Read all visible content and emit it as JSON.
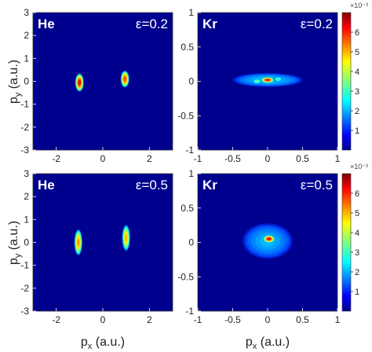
{
  "chart_data": [
    {
      "type": "heatmap",
      "atom_label": "He",
      "epsilon_label": "ε=0.2",
      "xlim": [
        -3,
        3
      ],
      "ylim": [
        -3,
        3
      ],
      "xticks": [
        "-2",
        "0",
        "2"
      ],
      "yticks": [
        "3",
        "2",
        "1",
        "0",
        "-1",
        "-2",
        "-3"
      ],
      "ylabel_main": "p",
      "ylabel_sub": "y",
      "ylabel_unit": " (a.u.)",
      "hotspots": [
        {
          "x": -1.0,
          "y": -0.05,
          "sx": 0.13,
          "sy": 0.28,
          "peak": 1.0
        },
        {
          "x": 0.95,
          "y": 0.1,
          "sx": 0.13,
          "sy": 0.26,
          "peak": 0.9
        }
      ]
    },
    {
      "type": "heatmap",
      "atom_label": "Kr",
      "epsilon_label": "ε=0.2",
      "xlim": [
        -1,
        1
      ],
      "ylim": [
        -1,
        1
      ],
      "xticks": [
        "-1",
        "-0.5",
        "0",
        "0.5",
        "1"
      ],
      "yticks": [
        "1",
        "0.5",
        "0",
        "-0.5",
        "-1"
      ],
      "hotspots": [
        {
          "x": 0.0,
          "y": 0.02,
          "sx": 0.35,
          "sy": 0.07,
          "peak": 0.25
        },
        {
          "x": 0.0,
          "y": 0.02,
          "sx": 0.07,
          "sy": 0.03,
          "peak": 1.0
        },
        {
          "x": -0.15,
          "y": 0.0,
          "sx": 0.05,
          "sy": 0.03,
          "peak": 0.45
        },
        {
          "x": 0.15,
          "y": 0.03,
          "sx": 0.05,
          "sy": 0.03,
          "peak": 0.4
        }
      ],
      "colorbar": {
        "ticks": [
          "1",
          "2",
          "3",
          "4",
          "5",
          "6"
        ],
        "exponent": "×10⁻³",
        "max": 7
      }
    },
    {
      "type": "heatmap",
      "atom_label": "He",
      "epsilon_label": "ε=0.5",
      "xlim": [
        -3,
        3
      ],
      "ylim": [
        -3,
        3
      ],
      "xticks": [
        "-2",
        "0",
        "2"
      ],
      "yticks": [
        "3",
        "2",
        "1",
        "0",
        "-1",
        "-2",
        "-3"
      ],
      "ylabel_main": "p",
      "ylabel_sub": "y",
      "ylabel_unit": " (a.u.)",
      "xlabel_main": "p",
      "xlabel_sub": "x",
      "xlabel_unit": " (a.u.)",
      "hotspots": [
        {
          "x": -1.05,
          "y": 0.0,
          "sx": 0.12,
          "sy": 0.4,
          "peak": 0.8
        },
        {
          "x": 1.0,
          "y": 0.2,
          "sx": 0.12,
          "sy": 0.4,
          "peak": 0.75
        }
      ]
    },
    {
      "type": "heatmap",
      "atom_label": "Kr",
      "epsilon_label": "ε=0.5",
      "xlim": [
        -1,
        1
      ],
      "ylim": [
        -1,
        1
      ],
      "xticks": [
        "-1",
        "-0.5",
        "0",
        "0.5",
        "1"
      ],
      "yticks": [
        "1",
        "0.5",
        "0",
        "-0.5",
        "-1"
      ],
      "xlabel_main": "p",
      "xlabel_sub": "x",
      "xlabel_unit": " (a.u.)",
      "hotspots": [
        {
          "x": 0.0,
          "y": 0.02,
          "sx": 0.25,
          "sy": 0.18,
          "peak": 0.22
        },
        {
          "x": 0.02,
          "y": 0.05,
          "sx": 0.06,
          "sy": 0.04,
          "peak": 1.0
        }
      ],
      "colorbar": {
        "ticks": [
          "1",
          "2",
          "3",
          "4",
          "5",
          "6"
        ],
        "exponent": "×10⁻³",
        "max": 7
      }
    }
  ]
}
